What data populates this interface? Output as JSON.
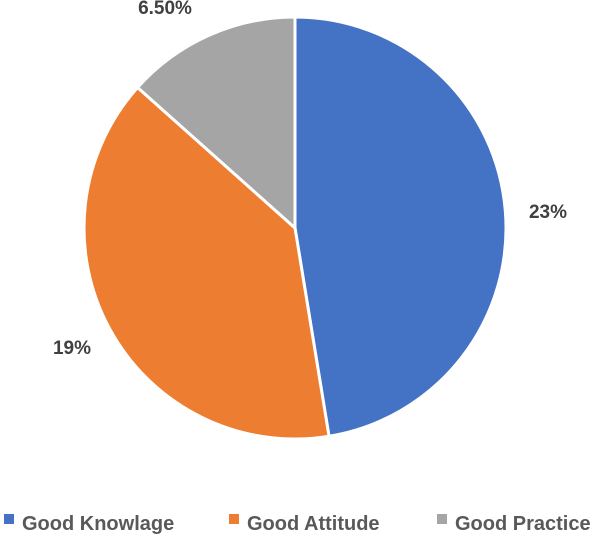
{
  "chart_data": {
    "type": "pie",
    "categories": [
      "Good Knowlage",
      "Good Attitude",
      "Good Practice"
    ],
    "values": [
      23,
      19,
      6.5
    ],
    "data_labels": [
      "23%",
      "19%",
      "6.50%"
    ],
    "colors": [
      "#4472c4",
      "#ed7d31",
      "#a5a5a5"
    ],
    "start_angle_deg": 0,
    "direction": "clockwise",
    "slice_border_color": "#ffffff",
    "legend": "bottom",
    "title": ""
  }
}
